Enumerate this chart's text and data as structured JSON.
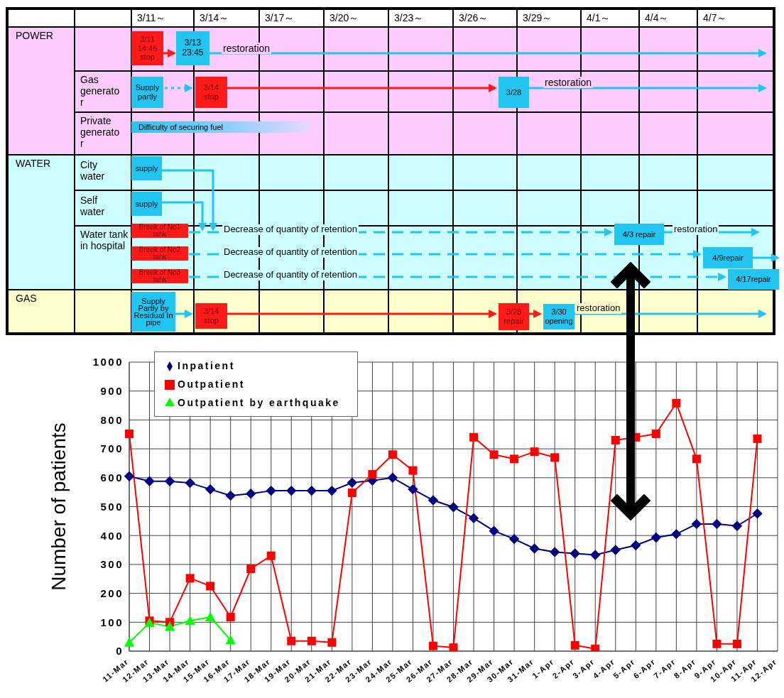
{
  "chart_data": [
    {
      "type": "other",
      "categories": [
        "3/11～",
        "3/14～",
        "3/17～",
        "3/20～",
        "3/23～",
        "3/26～",
        "3/29～",
        "4/1～",
        "4/4～",
        "4/7～"
      ],
      "annotations": [
        "POWER",
        "Gas generator",
        "Private generator",
        "WATER",
        "City water",
        "Self water",
        "Water tank in hospital",
        "GAS",
        "3/11 14:46 stop",
        "3/13 23:45",
        "restoration",
        "Supply partly",
        "3/14 stop",
        "3/28",
        "restoration",
        "Difficulty of securing fuel",
        "supply",
        "supply",
        "Break of No1 tank",
        "Decrease of quantity of retention",
        "4/3 repair",
        "restoration",
        "Break of No2 tank",
        "Decrease of quantity of retention",
        "4/9repair",
        "Break of No3 tank",
        "Decrease of quantity of retention",
        "4/17repair",
        "Supply Partly by Residual In pipe",
        "3/14 stop",
        "3/28 repair",
        "3/30 opening",
        "restoration"
      ]
    },
    {
      "type": "line",
      "ylabel": "Number of patients",
      "categories": [
        "11-Mar",
        "12-Mar",
        "13-Mar",
        "14-Mar",
        "15-Mar",
        "16-Mar",
        "17-Mar",
        "18-Mar",
        "19-Mar",
        "20-Mar",
        "21-Mar",
        "22-Mar",
        "23-Mar",
        "24-Mar",
        "25-Mar",
        "26-Mar",
        "27-Mar",
        "28-Mar",
        "29-Mar",
        "30-Mar",
        "31-Mar",
        "1-Apr",
        "2-Apr",
        "3-Apr",
        "4-Apr",
        "5-Apr",
        "6-Apr",
        "7-Apr",
        "8-Apr",
        "9-Apr",
        "10-Apr",
        "11-Apr",
        "12-Apr"
      ],
      "series": [
        {
          "name": "Inpatient",
          "color": "#000080",
          "marker": "diamond",
          "values": [
            605,
            588,
            588,
            582,
            560,
            538,
            545,
            555,
            555,
            555,
            555,
            583,
            590,
            600,
            560,
            522,
            498,
            460,
            416,
            388,
            355,
            343,
            338,
            333,
            350,
            366,
            393,
            405,
            440,
            440,
            433,
            476,
            null
          ]
        },
        {
          "name": "Outpatient",
          "color": "#ff0000",
          "marker": "square",
          "values": [
            752,
            105,
            100,
            252,
            225,
            118,
            285,
            330,
            35,
            35,
            30,
            548,
            612,
            680,
            625,
            18,
            12,
            740,
            680,
            665,
            690,
            670,
            20,
            8,
            730,
            740,
            752,
            858,
            665,
            25,
            25,
            735,
            null
          ]
        },
        {
          "name": "Outpatient by earthquake",
          "color": "#00ff00",
          "marker": "triangle",
          "values": [
            30,
            98,
            85,
            105,
            118,
            38,
            null,
            null,
            null,
            null,
            null,
            null,
            null,
            null,
            null,
            null,
            null,
            null,
            null,
            null,
            null,
            null,
            null,
            null,
            null,
            null,
            null,
            null,
            null,
            null,
            null,
            null,
            null
          ]
        }
      ],
      "ylim": [
        0,
        1000
      ],
      "yticks": [
        0,
        100,
        200,
        300,
        400,
        500,
        600,
        700,
        800,
        900,
        1000
      ],
      "grid": true,
      "legend": "top left",
      "line_style": "solid"
    }
  ]
}
